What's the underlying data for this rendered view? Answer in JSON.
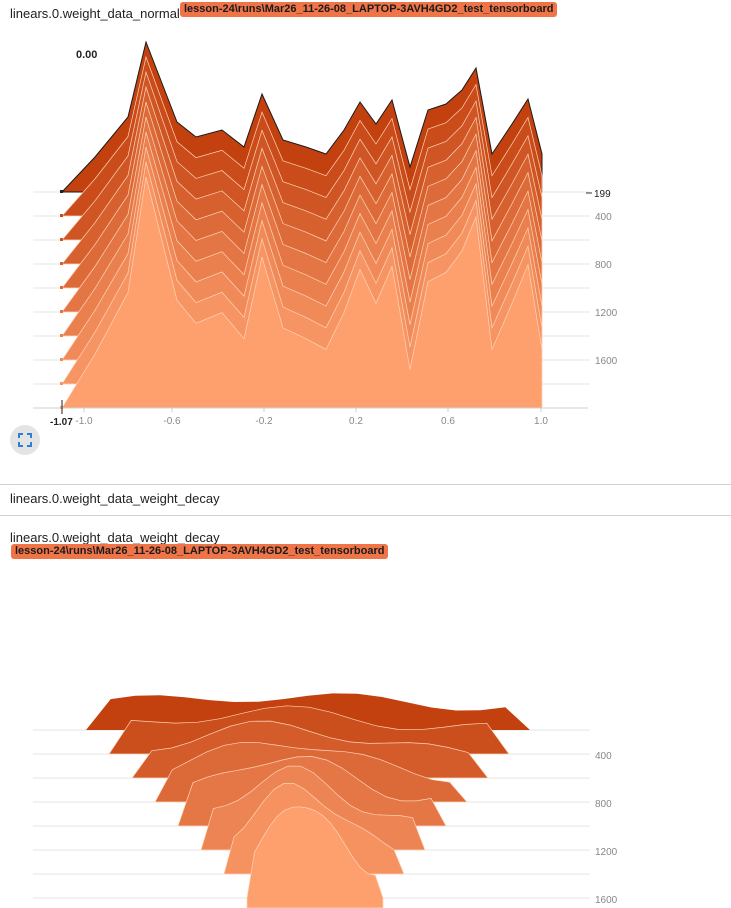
{
  "chart1": {
    "title": "linears.0.weight_data_normal",
    "run": "lesson-24\\runs\\Mar26_11-26-08_LAPTOP-3AVH4GD2_test_tensorboard",
    "hover_value": "0.00",
    "hover_step": "199",
    "hover_x": "-1.07",
    "x_ticks": [
      "-1.0",
      "-0.6",
      "-0.2",
      "0.2",
      "0.6",
      "1.0"
    ],
    "y_ticks": [
      "400",
      "800",
      "1200",
      "1600"
    ],
    "expand_icon": "fullscreen-icon"
  },
  "group_header": "linears.0.weight_data_weight_decay",
  "chart2": {
    "title": "linears.0.weight_data_weight_decay",
    "run": "lesson-24\\runs\\Mar26_11-26-08_LAPTOP-3AVH4GD2_test_tensorboard",
    "y_ticks": [
      "400",
      "800",
      "1200",
      "1600"
    ]
  },
  "colors": {
    "run_badge": "#ef7548",
    "series_dark": "#c2410f",
    "series_light": "#fda06e"
  },
  "chart_data": [
    {
      "type": "area",
      "title": "linears.0.weight_data_normal",
      "x_range": [
        -1.07,
        1.0
      ],
      "y_axis": "step",
      "y_ticks": [
        400,
        800,
        1200,
        1600
      ],
      "slices": 10
    },
    {
      "type": "area",
      "title": "linears.0.weight_data_weight_decay",
      "y_axis": "step",
      "y_ticks": [
        400,
        800,
        1200,
        1600
      ],
      "slices": 8
    }
  ]
}
